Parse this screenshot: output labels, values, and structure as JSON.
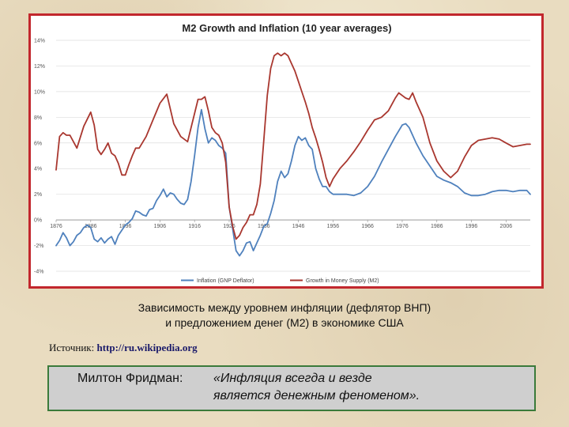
{
  "chart_data": {
    "type": "line",
    "title": "M2 Growth and Inflation (10 year averages)",
    "xlabel": "",
    "ylabel": "",
    "xlim": [
      1876,
      2013
    ],
    "ylim": [
      -4,
      14
    ],
    "yticks": [
      "14%",
      "12%",
      "10%",
      "8%",
      "6%",
      "4%",
      "2%",
      "0%",
      "-2%",
      "-4%"
    ],
    "xticks": [
      "1876",
      "1886",
      "1896",
      "1906",
      "1916",
      "1926",
      "1936",
      "1946",
      "1956",
      "1966",
      "1976",
      "1986",
      "1996",
      "2006"
    ],
    "grid": true,
    "legend_position": "bottom",
    "series": [
      {
        "name": "Inflation (GNP Deflator)",
        "color": "#4f81bd",
        "x": [
          1876,
          1877,
          1878,
          1879,
          1880,
          1881,
          1882,
          1883,
          1884,
          1885,
          1886,
          1887,
          1888,
          1889,
          1890,
          1891,
          1892,
          1893,
          1894,
          1895,
          1896,
          1897,
          1898,
          1899,
          1900,
          1901,
          1902,
          1903,
          1904,
          1905,
          1906,
          1907,
          1908,
          1909,
          1910,
          1911,
          1912,
          1913,
          1914,
          1915,
          1916,
          1917,
          1918,
          1919,
          1920,
          1921,
          1922,
          1923,
          1924,
          1925,
          1926,
          1927,
          1928,
          1929,
          1930,
          1931,
          1932,
          1933,
          1934,
          1935,
          1936,
          1937,
          1938,
          1939,
          1940,
          1941,
          1942,
          1943,
          1944,
          1945,
          1946,
          1947,
          1948,
          1949,
          1950,
          1951,
          1952,
          1953,
          1954,
          1955,
          1956,
          1958,
          1960,
          1962,
          1964,
          1966,
          1968,
          1970,
          1972,
          1974,
          1976,
          1977,
          1978,
          1979,
          1980,
          1982,
          1984,
          1986,
          1988,
          1990,
          1992,
          1994,
          1996,
          1998,
          2000,
          2002,
          2004,
          2006,
          2008,
          2010,
          2012,
          2013
        ],
        "values": [
          -2.0,
          -1.6,
          -1.0,
          -1.4,
          -2.0,
          -1.7,
          -1.2,
          -1.0,
          -0.6,
          -0.4,
          -0.6,
          -1.5,
          -1.7,
          -1.4,
          -1.8,
          -1.5,
          -1.3,
          -1.9,
          -1.2,
          -0.8,
          -0.4,
          -0.2,
          0.1,
          0.7,
          0.6,
          0.4,
          0.3,
          0.8,
          0.9,
          1.5,
          1.9,
          2.4,
          1.8,
          2.1,
          2.0,
          1.6,
          1.3,
          1.2,
          1.6,
          3.0,
          5.0,
          7.2,
          8.6,
          7.1,
          6.0,
          6.4,
          6.2,
          5.8,
          5.6,
          5.2,
          1.0,
          -0.7,
          -2.4,
          -2.8,
          -2.4,
          -1.8,
          -1.7,
          -2.4,
          -1.8,
          -1.2,
          -0.5,
          -0.3,
          0.5,
          1.5,
          3.0,
          3.8,
          3.3,
          3.6,
          4.6,
          5.8,
          6.5,
          6.2,
          6.4,
          5.8,
          5.5,
          4.0,
          3.2,
          2.6,
          2.6,
          2.2,
          2.0,
          2.0,
          2.0,
          1.9,
          2.1,
          2.6,
          3.4,
          4.5,
          5.5,
          6.5,
          7.4,
          7.5,
          7.2,
          6.6,
          6.0,
          5.0,
          4.2,
          3.4,
          3.1,
          2.9,
          2.6,
          2.1,
          1.9,
          1.9,
          2.0,
          2.2,
          2.3,
          2.3,
          2.2,
          2.3,
          2.3,
          2.0
        ]
      },
      {
        "name": "Growth in Money Supply (M2)",
        "color": "#a9372f",
        "x": [
          1876,
          1877,
          1878,
          1879,
          1880,
          1882,
          1884,
          1886,
          1887,
          1888,
          1889,
          1890,
          1891,
          1892,
          1893,
          1894,
          1895,
          1896,
          1897,
          1898,
          1899,
          1900,
          1902,
          1904,
          1906,
          1908,
          1910,
          1912,
          1914,
          1916,
          1917,
          1918,
          1919,
          1920,
          1921,
          1922,
          1923,
          1924,
          1925,
          1926,
          1927,
          1928,
          1929,
          1930,
          1931,
          1932,
          1933,
          1934,
          1935,
          1936,
          1937,
          1938,
          1939,
          1940,
          1941,
          1942,
          1943,
          1944,
          1945,
          1946,
          1947,
          1948,
          1949,
          1950,
          1951,
          1952,
          1953,
          1954,
          1955,
          1956,
          1958,
          1960,
          1962,
          1964,
          1966,
          1968,
          1970,
          1972,
          1974,
          1975,
          1976,
          1977,
          1978,
          1979,
          1980,
          1982,
          1984,
          1986,
          1988,
          1990,
          1992,
          1994,
          1996,
          1998,
          2000,
          2002,
          2004,
          2006,
          2008,
          2010,
          2012,
          2013
        ],
        "values": [
          3.9,
          6.5,
          6.8,
          6.6,
          6.6,
          5.6,
          7.3,
          8.4,
          7.4,
          5.5,
          5.1,
          5.5,
          6.0,
          5.2,
          5.0,
          4.4,
          3.5,
          3.5,
          4.3,
          5.0,
          5.6,
          5.6,
          6.5,
          7.8,
          9.1,
          9.8,
          7.5,
          6.5,
          6.1,
          8.3,
          9.4,
          9.4,
          9.6,
          8.5,
          7.2,
          6.8,
          6.6,
          6.0,
          4.5,
          1.0,
          -0.5,
          -1.5,
          -1.2,
          -0.6,
          -0.2,
          0.4,
          0.4,
          1.2,
          2.8,
          6.2,
          9.7,
          11.8,
          12.8,
          13.0,
          12.8,
          13.0,
          12.8,
          12.2,
          11.6,
          10.8,
          10.0,
          9.2,
          8.3,
          7.2,
          6.4,
          5.5,
          4.5,
          3.3,
          2.6,
          3.2,
          4.0,
          4.6,
          5.3,
          6.1,
          7.0,
          7.8,
          8.0,
          8.5,
          9.5,
          9.9,
          9.7,
          9.5,
          9.4,
          9.9,
          9.2,
          8.0,
          6.0,
          4.6,
          3.8,
          3.3,
          3.8,
          4.9,
          5.8,
          6.2,
          6.3,
          6.4,
          6.3,
          6.0,
          5.7,
          5.8,
          5.9,
          5.9
        ]
      }
    ]
  },
  "caption": {
    "line1": "Зависимость между уровнем инфляции (дефлятор ВНП)",
    "line2": "и предложением денег (М2) в экономике США"
  },
  "source": {
    "label": "Источник:",
    "url": "http://ru.wikipedia.org"
  },
  "quote": {
    "author": "Милтон Фридман:",
    "line1": "«Инфляция всегда и везде",
    "line2": "является денежным феноменом»."
  }
}
